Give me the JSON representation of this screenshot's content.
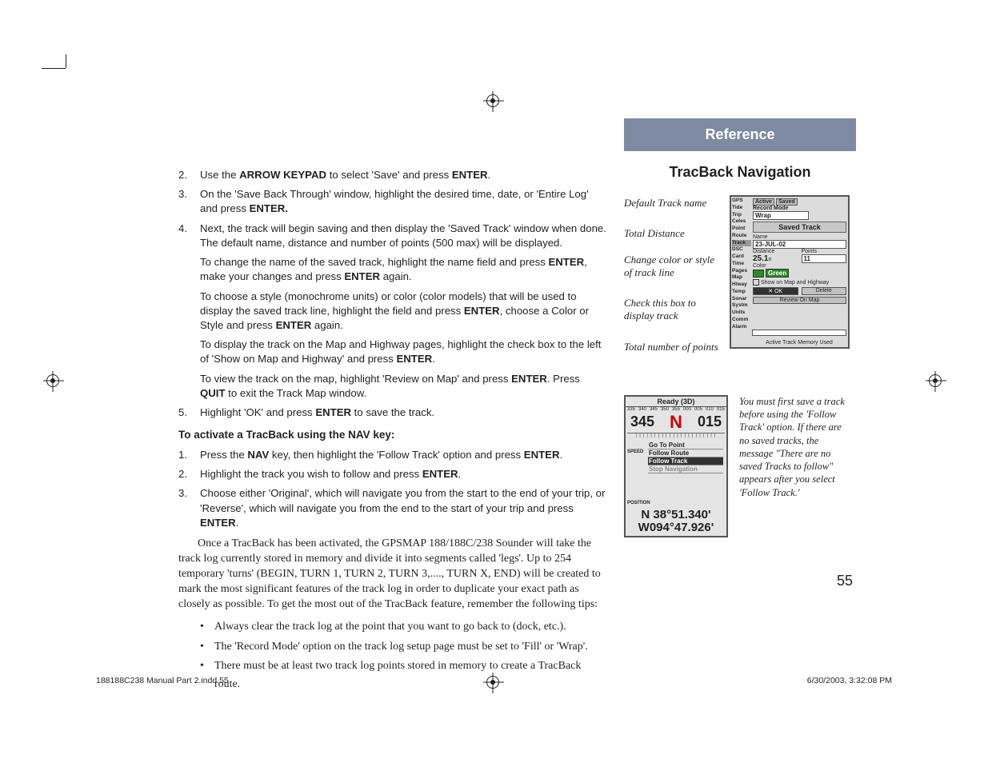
{
  "main": {
    "steps_a": [
      {
        "num": "2.",
        "html": "Use the <b>ARROW KEYPAD</b> to select 'Save' and press <b>ENTER</b>."
      },
      {
        "num": "3.",
        "html": "On the 'Save Back Through' window, highlight the desired time, date, or 'Entire Log' and press <b>ENTER.</b>"
      },
      {
        "num": "4.",
        "html": "Next, the track will begin saving and then display the 'Saved Track' window when done. The default name, distance and number of points (500 max) will be displayed."
      }
    ],
    "subs": [
      "To change the name of the saved track, highlight the name field and press <b>ENTER</b>, make your changes and press <b>ENTER</b> again.",
      "To choose a style (monochrome units) or color (color models) that will be used to display the saved track line, highlight the field and press <b>ENTER</b>, choose a Color or Style and press <b>ENTER</b> again.",
      "To display the track on the Map and Highway pages, highlight the check box to the left of 'Show on Map and Highway' and press <b>ENTER</b>.",
      "To view the track on the map, highlight 'Review on Map' and press <b>ENTER</b>. Press <b>QUIT</b> to exit the Track Map window."
    ],
    "step5": {
      "num": "5.",
      "html": "Highlight 'OK' and press <b>ENTER</b> to save the track."
    },
    "section_head": "To activate a TracBack using the NAV key:",
    "steps_b": [
      {
        "num": "1.",
        "html": "Press the <b>NAV</b> key, then highlight the 'Follow Track' option and press <b>ENTER</b>."
      },
      {
        "num": "2.",
        "html": "Highlight the track you wish to follow and press <b>ENTER</b>."
      },
      {
        "num": "3.",
        "html": "Choose either 'Original', which will navigate you from the start to the end of your trip, or 'Reverse', which will navigate you from the end to the start of your trip and press <b>ENTER</b>."
      }
    ],
    "body": "Once a TracBack has been activated, the GPSMAP 188/188C/238 Sounder will take the track log currently stored in memory and divide it into segments called 'legs'. Up to 254 temporary 'turns' (BEGIN, TURN 1, TURN 2, TURN 3,...., TURN X, END) will be created to mark the most significant features of the track log in order to duplicate your exact path as closely as possible. To get the most out of the TracBack feature, remember the following tips:",
    "bullets": [
      "Always clear the track log at the point that you want to go back to (dock, etc.).",
      "The 'Record Mode' option on the track log setup page must be set to 'Fill' or 'Wrap'.",
      "There must be at least two track log points stored in memory to create a TracBack route."
    ]
  },
  "side": {
    "ref": "Reference",
    "title": "TracBack Navigation",
    "labels": {
      "l1": "Default Track name",
      "l2": "Total Distance",
      "l3": "Change color or style of track line",
      "l4": "Check this box to display track",
      "l5": "Total number of points"
    },
    "fig1": {
      "active": "Active",
      "saved": "Saved",
      "recmode_lbl": "Record Mode",
      "recmode": "Wrap",
      "title": "Saved Track",
      "name_lbl": "Name",
      "name": "23-JUL-02",
      "dist_lbl": "Distance",
      "dist": "25.1",
      "dist_unit": "n",
      "pts_lbl": "Points",
      "pts": "11",
      "color_lbl": "Color",
      "color": "Green",
      "show": "Show on Map and Highway",
      "delete": "Delete",
      "review": "Review On Map",
      "mem": "Active Track Memory Used",
      "tags": [
        "GPS",
        "Tide",
        "Trip",
        "Celes",
        "Point",
        "Route",
        "Track",
        "DSC",
        "Card",
        "Time",
        "Pages",
        "Map",
        "Hiway",
        "Temp",
        "Sonar",
        "Systm",
        "Units",
        "Comm",
        "Alarm"
      ]
    },
    "fig2": {
      "status": "Ready (3D)",
      "scale": [
        "335",
        "340",
        "345",
        "350",
        "355",
        "000",
        "005",
        "010",
        "015",
        "0"
      ],
      "left_hdg": "345",
      "right_hdg": "015",
      "menu": [
        "Go To Point",
        "Follow Route",
        "Follow Track",
        "Stop Navigation"
      ],
      "speed_lbl": "SPEED",
      "pos_lbl": "POSITION",
      "coords1": "N 38°51.340'",
      "coords2": "W094°47.926'"
    },
    "note": "You must first save a track before using the 'Follow Track' option. If there are no saved tracks, the message \"There are no saved Tracks to follow\" appears after you select 'Follow Track.'",
    "page": "55"
  },
  "footer": {
    "left": "188188C238 Manual Part 2.indd   55",
    "right": "6/30/2003, 3:32:08 PM"
  }
}
